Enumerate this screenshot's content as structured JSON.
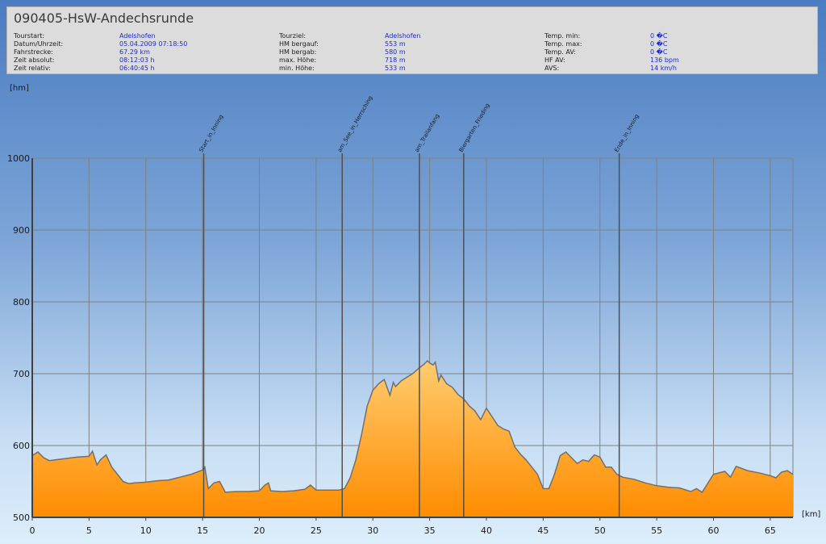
{
  "header": {
    "title": "090405-HsW-Andechsrunde",
    "columns": [
      [
        {
          "label": "Tourstart:",
          "value": "Adelshofen"
        },
        {
          "label": "Datum/Uhrzeit:",
          "value": "05.04.2009 07:18:50"
        },
        {
          "label": "Fahrstrecke:",
          "value": "67.29 km"
        },
        {
          "label": "Zeit absolut:",
          "value": "08:12:03 h"
        },
        {
          "label": "Zeit relativ:",
          "value": "06:40:45 h"
        }
      ],
      [
        {
          "label": "Tourziel:",
          "value": "Adelshofen"
        },
        {
          "label": "HM bergauf:",
          "value": "553 m"
        },
        {
          "label": "HM bergab:",
          "value": "580 m"
        },
        {
          "label": "max. Höhe:",
          "value": "718 m"
        },
        {
          "label": "min. Höhe:",
          "value": "533 m"
        }
      ],
      [
        {
          "label": "Temp. min:",
          "value": "0 �C"
        },
        {
          "label": "Temp. max:",
          "value": "0 �C"
        },
        {
          "label": "Temp. AV:",
          "value": "0 �C"
        },
        {
          "label": "HF AV:",
          "value": "136 bpm"
        },
        {
          "label": "AVS:",
          "value": "14 km/h"
        }
      ]
    ]
  },
  "chart_data": {
    "type": "area",
    "ylabel": "[hm]",
    "xlabel": "[km]",
    "xlim": [
      0,
      67
    ],
    "ylim": [
      500,
      1000
    ],
    "x_ticks": [
      0,
      5,
      10,
      15,
      20,
      25,
      30,
      35,
      40,
      45,
      50,
      55,
      60,
      65
    ],
    "y_ticks": [
      500,
      600,
      700,
      800,
      900,
      1000
    ],
    "grid": true,
    "colors": {
      "fill_top": "#ffcc70",
      "fill_bottom": "#ff8c00",
      "line": "#707070",
      "grid": "#808080",
      "marker": "#505050"
    },
    "markers": [
      {
        "km": 15.1,
        "label": "Start_in_Inning"
      },
      {
        "km": 27.3,
        "label": "am_See_in_Herrsching"
      },
      {
        "km": 34.1,
        "label": "am_Trailanfang"
      },
      {
        "km": 38.0,
        "label": "Biergarten_Frieding"
      },
      {
        "km": 51.7,
        "label": "Ende_in_Inning"
      }
    ],
    "x": [
      0,
      0.5,
      1,
      1.5,
      2,
      3,
      4,
      5,
      5.3,
      5.7,
      6,
      6.5,
      7,
      7.5,
      8,
      8.5,
      9,
      10,
      11,
      12,
      13,
      14,
      14.5,
      15,
      15.2,
      15.5,
      16,
      16.5,
      17,
      18,
      19,
      20,
      20.5,
      20.8,
      21,
      22,
      23,
      24,
      24.5,
      25,
      26,
      27,
      27.5,
      28,
      28.5,
      29,
      29.5,
      30,
      30.5,
      31,
      31.5,
      31.8,
      32,
      32.5,
      33,
      33.5,
      34,
      34.5,
      34.8,
      35,
      35.3,
      35.5,
      35.8,
      36,
      36.5,
      37,
      37.5,
      38,
      38.5,
      39,
      39.5,
      40,
      40.5,
      41,
      41.5,
      42,
      42.5,
      43,
      43.5,
      44,
      44.5,
      45,
      45.5,
      46,
      46.5,
      47,
      47.5,
      48,
      48.5,
      49,
      49.5,
      50,
      50.5,
      51,
      51.5,
      52,
      53,
      54,
      55,
      56,
      57,
      58,
      58.5,
      59,
      60,
      61,
      61.5,
      62,
      63,
      64,
      65,
      65.5,
      66,
      66.5,
      67
    ],
    "values": [
      586,
      591,
      583,
      579,
      580,
      582,
      584,
      585,
      592,
      573,
      580,
      587,
      570,
      560,
      550,
      547,
      548,
      549,
      551,
      552,
      556,
      560,
      563,
      566,
      570,
      540,
      548,
      550,
      535,
      536,
      536,
      537,
      545,
      548,
      537,
      536,
      537,
      539,
      545,
      538,
      538,
      538,
      540,
      555,
      580,
      615,
      655,
      677,
      686,
      692,
      670,
      688,
      682,
      690,
      695,
      700,
      707,
      713,
      718,
      715,
      712,
      716,
      690,
      698,
      686,
      681,
      671,
      665,
      655,
      648,
      636,
      652,
      640,
      628,
      623,
      620,
      598,
      588,
      580,
      570,
      560,
      540,
      540,
      560,
      586,
      591,
      583,
      575,
      580,
      578,
      587,
      584,
      570,
      570,
      560,
      556,
      553,
      548,
      544,
      542,
      541,
      536,
      540,
      535,
      560,
      564,
      556,
      571,
      565,
      562,
      558,
      555,
      563,
      565,
      560
    ]
  }
}
